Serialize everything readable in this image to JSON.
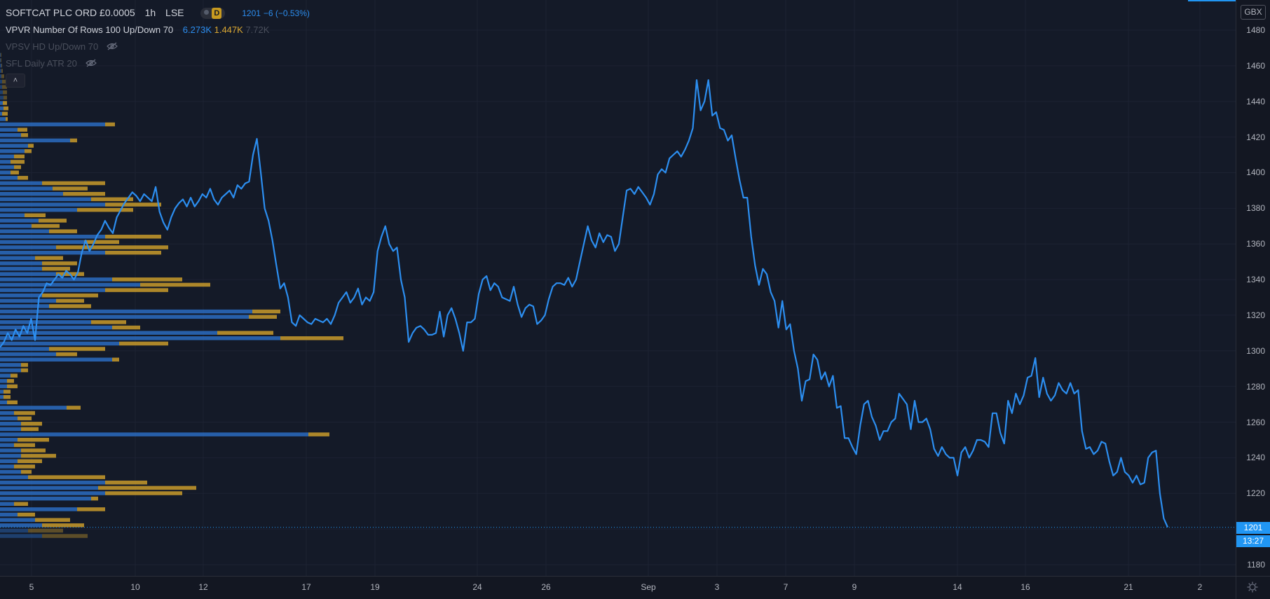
{
  "legend": {
    "symbol": "SOFTCAT PLC ORD £0.0005",
    "interval": "1h",
    "exchange": "LSE",
    "chip_badge": "D",
    "last": "1201",
    "change": "−6 (−0.53%)",
    "vpvr_title": "VPVR Number Of Rows 100 Up/Down 70",
    "vpvr_up": "6.273K",
    "vpvr_down": "1.447K",
    "vpvr_total": "7.72K",
    "vpsv_title": "VPSV HD Up/Down 70",
    "atr_title": "SFL Daily ATR 20"
  },
  "price_axis": {
    "currency": "GBX",
    "ticks": [
      "1480",
      "1460",
      "1440",
      "1420",
      "1400",
      "1380",
      "1360",
      "1340",
      "1320",
      "1300",
      "1280",
      "1260",
      "1240",
      "1220",
      "1180"
    ],
    "last_price": "1201",
    "countdown": "13:27"
  },
  "time_axis": {
    "ticks": [
      "5",
      "10",
      "12",
      "17",
      "19",
      "24",
      "26",
      "Sep",
      "3",
      "7",
      "9",
      "14",
      "16",
      "21",
      "2"
    ]
  },
  "colors": {
    "line": "#2c8ef0",
    "vp_up": "#2a6cc0",
    "vp_down": "#c89b2a",
    "accent": "#2196f3"
  },
  "icons": [
    "eye-hidden-icon",
    "chevron-up-icon",
    "settings-icon"
  ],
  "chart_data": {
    "type": "line",
    "y_range": [
      1172,
      1490
    ],
    "y_unit": "GBX",
    "series": [
      {
        "values": [
          1302,
          1305,
          1310,
          1306,
          1312,
          1308,
          1314,
          1310,
          1318,
          1306,
          1330,
          1333,
          1338,
          1337,
          1340,
          1343,
          1341,
          1345,
          1343,
          1340,
          1344,
          1355,
          1362,
          1356,
          1360,
          1365,
          1368,
          1373,
          1369,
          1366,
          1375,
          1379,
          1383,
          1386,
          1389,
          1387,
          1384,
          1388,
          1386,
          1384,
          1392,
          1378,
          1372,
          1368,
          1375,
          1380,
          1383,
          1385,
          1381,
          1386,
          1381,
          1384,
          1388,
          1386,
          1391,
          1385,
          1382,
          1386,
          1388,
          1390,
          1386,
          1393,
          1391,
          1394,
          1395,
          1410,
          1419,
          1400,
          1380,
          1373,
          1362,
          1348,
          1335,
          1338,
          1330,
          1316,
          1314,
          1320,
          1318,
          1316,
          1315,
          1318,
          1317,
          1316,
          1318,
          1315,
          1320,
          1327,
          1330,
          1333,
          1327,
          1330,
          1335,
          1326,
          1330,
          1328,
          1333,
          1356,
          1364,
          1370,
          1360,
          1356,
          1358,
          1340,
          1330,
          1305,
          1310,
          1313,
          1314,
          1312,
          1309,
          1309,
          1310,
          1322,
          1308,
          1320,
          1324,
          1318,
          1310,
          1300,
          1316,
          1316,
          1318,
          1332,
          1340,
          1342,
          1334,
          1338,
          1336,
          1330,
          1329,
          1328,
          1336,
          1326,
          1319,
          1324,
          1326,
          1325,
          1315,
          1317,
          1320,
          1329,
          1336,
          1338,
          1338,
          1337,
          1341,
          1336,
          1340,
          1350,
          1360,
          1370,
          1362,
          1358,
          1366,
          1361,
          1365,
          1364,
          1356,
          1360,
          1375,
          1390,
          1391,
          1388,
          1392,
          1389,
          1386,
          1382,
          1388,
          1399,
          1402,
          1400,
          1408,
          1410,
          1412,
          1409,
          1413,
          1418,
          1425,
          1452,
          1435,
          1440,
          1452,
          1432,
          1434,
          1425,
          1424,
          1418,
          1421,
          1408,
          1396,
          1386,
          1386,
          1364,
          1348,
          1337,
          1346,
          1343,
          1333,
          1328,
          1313,
          1328,
          1312,
          1315,
          1300,
          1290,
          1272,
          1283,
          1284,
          1298,
          1295,
          1284,
          1288,
          1280,
          1286,
          1268,
          1269,
          1251,
          1251,
          1246,
          1242,
          1258,
          1270,
          1272,
          1263,
          1258,
          1250,
          1255,
          1255,
          1260,
          1262,
          1276,
          1273,
          1270,
          1256,
          1272,
          1260,
          1260,
          1262,
          1256,
          1245,
          1241,
          1246,
          1242,
          1240,
          1240,
          1230,
          1243,
          1246,
          1240,
          1244,
          1250,
          1250,
          1249,
          1246,
          1265,
          1265,
          1254,
          1248,
          1272,
          1265,
          1276,
          1270,
          1275,
          1285,
          1286,
          1296,
          1274,
          1285,
          1276,
          1272,
          1275,
          1282,
          1278,
          1276,
          1282,
          1276,
          1278,
          1255,
          1245,
          1246,
          1242,
          1244,
          1249,
          1248,
          1238,
          1230,
          1232,
          1240,
          1232,
          1230,
          1226,
          1230,
          1225,
          1226,
          1240,
          1243,
          1244,
          1220,
          1206,
          1201
        ]
      }
    ],
    "volume_profile": {
      "rows": [
        [
          1466,
          1,
          1
        ],
        [
          1463,
          1,
          1
        ],
        [
          1460,
          2,
          1
        ],
        [
          1457,
          2,
          2
        ],
        [
          1454,
          2,
          4
        ],
        [
          1451,
          3,
          5
        ],
        [
          1448,
          3,
          7
        ],
        [
          1445,
          4,
          6
        ],
        [
          1442,
          5,
          5
        ],
        [
          1439,
          4,
          6
        ],
        [
          1436,
          5,
          7
        ],
        [
          1433,
          3,
          8
        ],
        [
          1430,
          8,
          3
        ],
        [
          1427,
          150,
          14
        ],
        [
          1424,
          25,
          14
        ],
        [
          1421,
          30,
          10
        ],
        [
          1418,
          100,
          10
        ],
        [
          1415,
          40,
          8
        ],
        [
          1412,
          35,
          10
        ],
        [
          1409,
          20,
          15
        ],
        [
          1406,
          15,
          20
        ],
        [
          1403,
          20,
          10
        ],
        [
          1400,
          15,
          12
        ],
        [
          1397,
          25,
          15
        ],
        [
          1394,
          60,
          90
        ],
        [
          1391,
          75,
          50
        ],
        [
          1388,
          90,
          60
        ],
        [
          1385,
          130,
          60
        ],
        [
          1382,
          150,
          80
        ],
        [
          1379,
          110,
          80
        ],
        [
          1376,
          35,
          30
        ],
        [
          1373,
          55,
          40
        ],
        [
          1370,
          45,
          40
        ],
        [
          1367,
          70,
          40
        ],
        [
          1364,
          150,
          80
        ],
        [
          1361,
          120,
          50
        ],
        [
          1358,
          80,
          160
        ],
        [
          1355,
          150,
          80
        ],
        [
          1352,
          50,
          40
        ],
        [
          1349,
          60,
          50
        ],
        [
          1346,
          60,
          40
        ],
        [
          1343,
          80,
          40
        ],
        [
          1340,
          160,
          100
        ],
        [
          1337,
          200,
          100
        ],
        [
          1334,
          150,
          90
        ],
        [
          1331,
          60,
          80
        ],
        [
          1328,
          80,
          40
        ],
        [
          1325,
          70,
          60
        ],
        [
          1322,
          360,
          40
        ],
        [
          1319,
          355,
          40
        ],
        [
          1316,
          130,
          50
        ],
        [
          1313,
          160,
          40
        ],
        [
          1310,
          310,
          80
        ],
        [
          1307,
          400,
          90
        ],
        [
          1304,
          170,
          70
        ],
        [
          1301,
          70,
          80
        ],
        [
          1298,
          80,
          30
        ],
        [
          1295,
          160,
          10
        ],
        [
          1292,
          30,
          10
        ],
        [
          1289,
          30,
          10
        ],
        [
          1286,
          15,
          10
        ],
        [
          1283,
          10,
          10
        ],
        [
          1280,
          10,
          15
        ],
        [
          1277,
          5,
          10
        ],
        [
          1274,
          5,
          10
        ],
        [
          1271,
          10,
          15
        ],
        [
          1268,
          95,
          20
        ],
        [
          1265,
          20,
          30
        ],
        [
          1262,
          25,
          20
        ],
        [
          1259,
          30,
          30
        ],
        [
          1256,
          30,
          25
        ],
        [
          1253,
          440,
          30
        ],
        [
          1250,
          25,
          45
        ],
        [
          1247,
          20,
          30
        ],
        [
          1244,
          30,
          35
        ],
        [
          1241,
          30,
          50
        ],
        [
          1238,
          25,
          35
        ],
        [
          1235,
          20,
          30
        ],
        [
          1232,
          30,
          15
        ],
        [
          1229,
          40,
          110
        ],
        [
          1226,
          150,
          60
        ],
        [
          1223,
          140,
          140
        ],
        [
          1220,
          150,
          110
        ],
        [
          1217,
          130,
          10
        ],
        [
          1214,
          20,
          20
        ],
        [
          1211,
          110,
          40
        ],
        [
          1208,
          25,
          25
        ],
        [
          1205,
          50,
          50
        ],
        [
          1202,
          60,
          60
        ],
        [
          1199,
          40,
          50
        ],
        [
          1196,
          60,
          65
        ]
      ]
    }
  }
}
